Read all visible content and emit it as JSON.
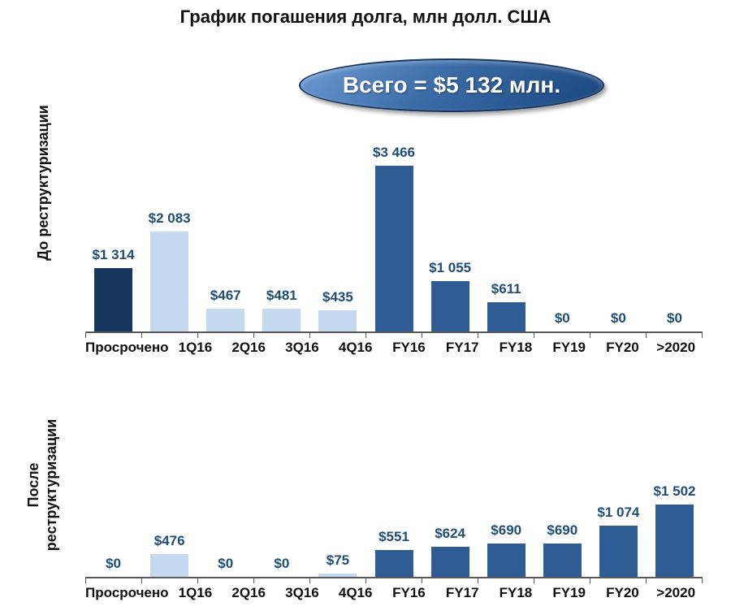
{
  "title": "График погашения долга, млн долл. США",
  "badge": {
    "text": "Всего = $5 132 млн."
  },
  "colors": {
    "dark_navy": "#17375e",
    "light_blue": "#c5d9f1",
    "medium_blue": "#305c94",
    "label_blue": "#1f4e79",
    "axis_gray": "#595959",
    "badge_blue": "#2f5f9e"
  },
  "chart_data": [
    {
      "type": "bar",
      "name": "До реструктуризации",
      "categories": [
        "Просрочено",
        "1Q16",
        "2Q16",
        "3Q16",
        "4Q16",
        "FY16",
        "FY17",
        "FY18",
        "FY19",
        "FY20",
        ">2020"
      ],
      "values": [
        1314,
        2083,
        467,
        481,
        435,
        3466,
        1055,
        611,
        0,
        0,
        0
      ],
      "labels": [
        "$1 314",
        "$2 083",
        "$467",
        "$481",
        "$435",
        "$3 466",
        "$1 055",
        "$611",
        "$0",
        "$0",
        "$0"
      ],
      "bar_colors": [
        "dark_navy",
        "light_blue",
        "light_blue",
        "light_blue",
        "light_blue",
        "medium_blue",
        "medium_blue",
        "medium_blue",
        "medium_blue",
        "medium_blue",
        "medium_blue"
      ],
      "xlabel": "",
      "ylabel": "До реструктуризации",
      "ylim": [
        0,
        3600
      ],
      "grid": false,
      "legend": false
    },
    {
      "type": "bar",
      "name": "После реструктуризации",
      "categories": [
        "Просрочено",
        "1Q16",
        "2Q16",
        "3Q16",
        "4Q16",
        "FY16",
        "FY17",
        "FY18",
        "FY19",
        "FY20",
        ">2020"
      ],
      "values": [
        0,
        476,
        0,
        0,
        75,
        551,
        624,
        690,
        690,
        1074,
        1502
      ],
      "labels": [
        "$0",
        "$476",
        "$0",
        "$0",
        "$75",
        "$551",
        "$624",
        "$690",
        "$690",
        "$1 074",
        "$1 502"
      ],
      "bar_colors": [
        "light_blue",
        "light_blue",
        "light_blue",
        "light_blue",
        "light_blue",
        "medium_blue",
        "medium_blue",
        "medium_blue",
        "medium_blue",
        "medium_blue",
        "medium_blue"
      ],
      "xlabel": "",
      "ylabel": "После реструктуризации",
      "ylim": [
        0,
        3600
      ],
      "grid": false,
      "legend": false
    }
  ]
}
